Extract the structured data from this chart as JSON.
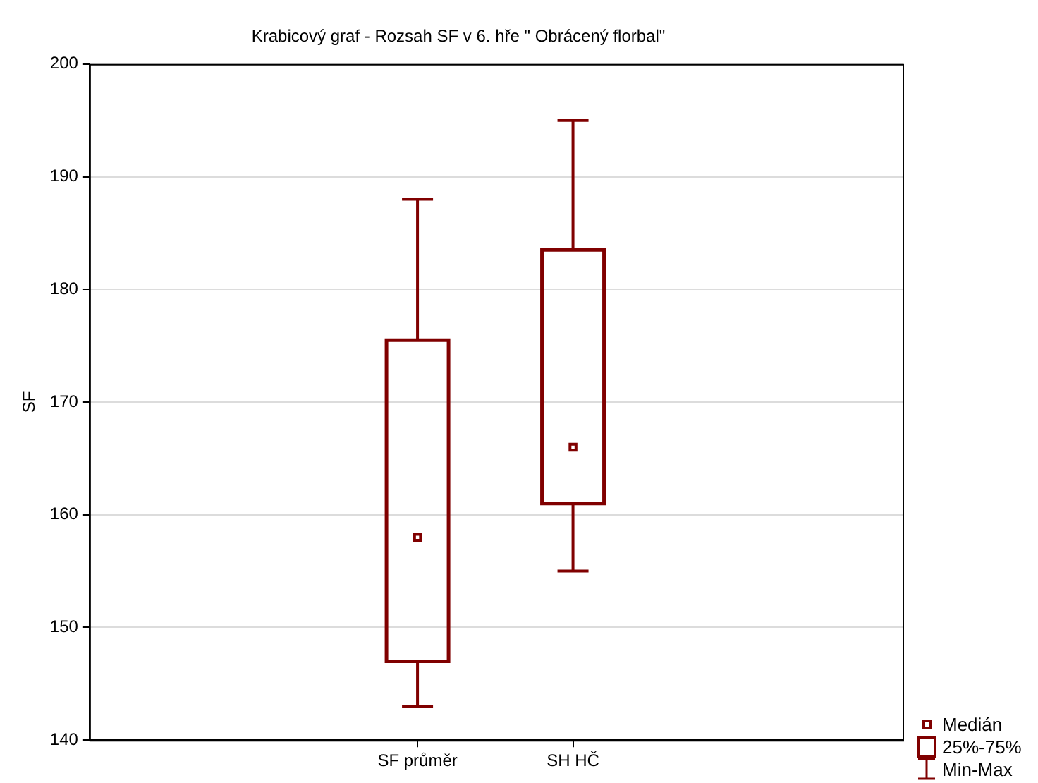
{
  "chart_data": {
    "type": "box",
    "title": "Krabicový graf - Rozsah SF v 6. hře \" Obrácený florbal\"",
    "ylabel": "SF",
    "categories": [
      "SF průměr",
      "SH HČ"
    ],
    "boxes": [
      {
        "low": 143,
        "q1": 147,
        "median": 158,
        "q3": 175.5,
        "high": 188
      },
      {
        "low": 155,
        "q1": 161,
        "median": 166,
        "q3": 183.5,
        "high": 195
      }
    ],
    "color": "#800000",
    "ylim": [
      140,
      200
    ],
    "yticks": [
      140,
      150,
      160,
      170,
      180,
      190,
      200
    ],
    "grid": "y",
    "annotations": [
      "Medián",
      "25%-75%",
      "Min-Max"
    ]
  }
}
